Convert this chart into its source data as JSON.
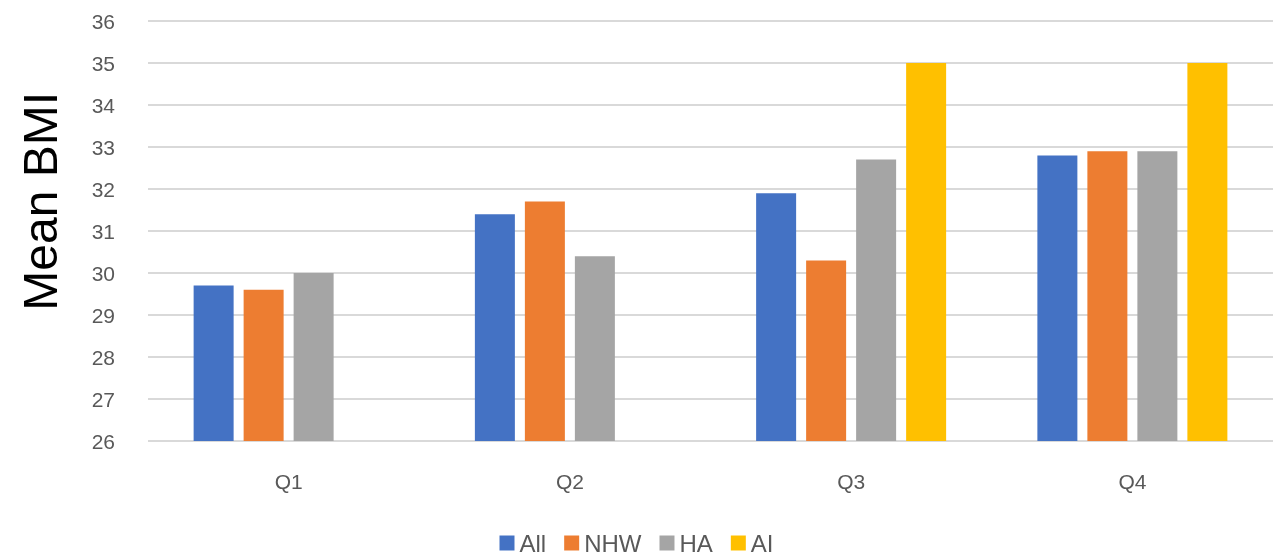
{
  "chart_data": {
    "type": "bar",
    "ylabel": "Mean BMI",
    "categories": [
      "Q1",
      "Q2",
      "Q3",
      "Q4"
    ],
    "series": [
      {
        "name": "All",
        "color": "#4472c4",
        "values": [
          29.7,
          31.4,
          31.9,
          32.8
        ]
      },
      {
        "name": "NHW",
        "color": "#ed7d31",
        "values": [
          29.6,
          31.7,
          30.3,
          32.9
        ]
      },
      {
        "name": "HA",
        "color": "#a5a5a5",
        "values": [
          30.0,
          30.4,
          32.7,
          32.9
        ]
      },
      {
        "name": "AI",
        "color": "#ffc000",
        "values": [
          null,
          null,
          35.0,
          35.0
        ]
      }
    ],
    "ylim": [
      26,
      36
    ],
    "yticks": [
      26,
      27,
      28,
      29,
      30,
      31,
      32,
      33,
      34,
      35,
      36
    ],
    "grid": "y",
    "legend": "bottom"
  }
}
